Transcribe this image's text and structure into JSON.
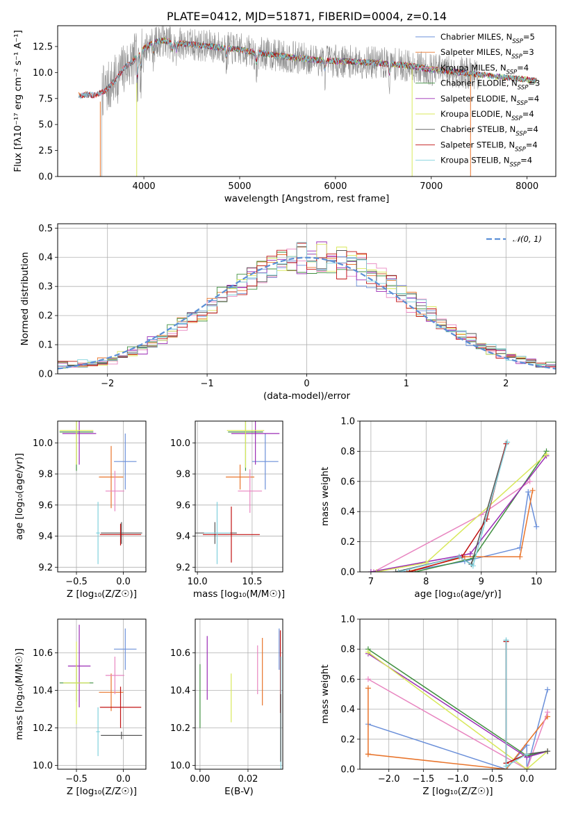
{
  "colors": {
    "chabrier_miles": "#6a8fd9",
    "salpeter_miles": "#e8742b",
    "kroupa_miles": "#e885c0",
    "chabrier_elodie": "#3f8f3f",
    "salpeter_elodie": "#9b2bb5",
    "kroupa_elodie": "#d8e85a",
    "chabrier_stelib": "#555555",
    "salpeter_stelib": "#c01010",
    "kroupa_stelib": "#7fd0dc",
    "gauss": "#5b8fd6"
  },
  "chart_data": [
    {
      "type": "line",
      "panel": "spectrum",
      "title": "PLATE=0412, MJD=51871, FIBERID=0004, z=0.14",
      "xlabel": "wavelength [Angstrom, rest frame]",
      "ylabel": "Flux [fλ10⁻¹⁷ erg cm⁻² s⁻¹ A⁻¹]",
      "xlim": [
        3100,
        8300
      ],
      "ylim": [
        0,
        14.5
      ],
      "xticks": [
        4000,
        5000,
        6000,
        7000,
        8000
      ],
      "yticks": [
        0.0,
        2.5,
        5.0,
        7.5,
        10.0,
        12.5
      ],
      "ytick_labels": [
        "0.0",
        "2.5",
        "5.0",
        "7.5",
        "10.0",
        "12.5"
      ],
      "legend_loc": "right",
      "legend": [
        {
          "main": "Chabrier MILES, N",
          "sub": "SSP",
          "tail": "=5",
          "color": "chabrier_miles"
        },
        {
          "main": "Salpeter MILES, N",
          "sub": "SSP",
          "tail": "=3",
          "color": "salpeter_miles"
        },
        {
          "main": "Kroupa MILES, N",
          "sub": "SSP",
          "tail": "=4",
          "color": "kroupa_miles"
        },
        {
          "main": "Chabrier ELODIE, N",
          "sub": "SSP",
          "tail": "=3",
          "color": "chabrier_elodie"
        },
        {
          "main": "Salpeter ELODIE, N",
          "sub": "SSP",
          "tail": "=4",
          "color": "salpeter_elodie"
        },
        {
          "main": "Kroupa ELODIE, N",
          "sub": "SSP",
          "tail": "=4",
          "color": "kroupa_elodie"
        },
        {
          "main": "Chabrier STELIB, N",
          "sub": "SSP",
          "tail": "=4",
          "color": "chabrier_stelib"
        },
        {
          "main": "Salpeter STELIB, N",
          "sub": "SSP",
          "tail": "=4",
          "color": "salpeter_stelib"
        },
        {
          "main": "Kroupa STELIB, N",
          "sub": "SSP",
          "tail": "=4",
          "color": "kroupa_stelib"
        }
      ],
      "continuum": [
        [
          3320,
          7.7
        ],
        [
          3400,
          7.9
        ],
        [
          3500,
          7.8
        ],
        [
          3600,
          8.3
        ],
        [
          3700,
          9.2
        ],
        [
          3800,
          10.5
        ],
        [
          3900,
          11.2
        ],
        [
          4000,
          12.3
        ],
        [
          4100,
          12.9
        ],
        [
          4200,
          13.1
        ],
        [
          4300,
          12.9
        ],
        [
          4500,
          12.7
        ],
        [
          4800,
          12.4
        ],
        [
          5000,
          12.2
        ],
        [
          5200,
          11.9
        ],
        [
          5500,
          11.5
        ],
        [
          5800,
          11.2
        ],
        [
          6000,
          11.1
        ],
        [
          6300,
          11.0
        ],
        [
          6600,
          10.8
        ],
        [
          6800,
          10.6
        ],
        [
          7000,
          10.3
        ],
        [
          7300,
          10.0
        ],
        [
          7600,
          9.7
        ],
        [
          7900,
          9.4
        ],
        [
          8100,
          9.2
        ]
      ],
      "observed_range": [
        3550,
        7500
      ]
    },
    {
      "type": "bar",
      "panel": "residuals",
      "xlabel": "(data-model)/error",
      "ylabel": "Normed distribution",
      "xlim": [
        -2.5,
        2.5
      ],
      "ylim": [
        0,
        0.515
      ],
      "xticks": [
        -2,
        -1,
        0,
        1,
        2
      ],
      "xtick_labels": [
        "−2",
        "−1",
        "0",
        "1",
        "2"
      ],
      "yticks": [
        0.0,
        0.1,
        0.2,
        0.3,
        0.4,
        0.5
      ],
      "ytick_labels": [
        "0.0",
        "0.1",
        "0.2",
        "0.3",
        "0.4",
        "0.5"
      ],
      "legend_label": "𝒩(0, 1)",
      "legend_loc": "top-right",
      "bin_width": 0.1
    },
    {
      "type": "scatter",
      "panel": "age-vs-Z",
      "xlabel": "Z [log₁₀(Z/Z☉)]",
      "ylabel": "age  [log₁₀(age/yr)]",
      "xlim": [
        -0.7,
        0.24
      ],
      "ylim": [
        9.17,
        10.14
      ],
      "xticks": [
        -0.5,
        0.0
      ],
      "xtick_labels": [
        "−0.5",
        "0.0"
      ],
      "yticks": [
        9.2,
        9.4,
        9.6,
        9.8,
        10.0
      ],
      "ytick_labels": [
        "9.2",
        "9.4",
        "9.6",
        "9.8",
        "10.0"
      ],
      "points": [
        {
          "x": 0.02,
          "y": 9.88,
          "xerr": 0.12,
          "yerr": 0.18,
          "color": "chabrier_miles"
        },
        {
          "x": -0.13,
          "y": 9.78,
          "xerr": 0.13,
          "yerr": 0.2,
          "color": "salpeter_miles"
        },
        {
          "x": -0.09,
          "y": 9.69,
          "xerr": 0.1,
          "yerr": 0.13,
          "color": "kroupa_miles"
        },
        {
          "x": -0.5,
          "y": 10.07,
          "xerr": 0.18,
          "yerr": 0.25,
          "color": "chabrier_elodie"
        },
        {
          "x": -0.47,
          "y": 10.06,
          "xerr": 0.18,
          "yerr": 0.2,
          "color": "salpeter_elodie"
        },
        {
          "x": -0.5,
          "y": 10.08,
          "xerr": 0.18,
          "yerr": 0.22,
          "color": "kroupa_elodie"
        },
        {
          "x": -0.02,
          "y": 9.42,
          "xerr": 0.22,
          "yerr": 0.07,
          "color": "chabrier_stelib"
        },
        {
          "x": -0.03,
          "y": 9.41,
          "xerr": 0.22,
          "yerr": 0.07,
          "color": "salpeter_stelib"
        },
        {
          "x": -0.27,
          "y": 9.42,
          "xerr": 0.02,
          "yerr": 0.2,
          "color": "kroupa_stelib"
        }
      ]
    },
    {
      "type": "scatter",
      "panel": "age-vs-mass",
      "xlabel": "mass [log₁₀(M/M☉)]",
      "ylabel": "",
      "xlim": [
        9.98,
        10.78
      ],
      "ylim": [
        9.17,
        10.14
      ],
      "xticks": [
        10.0,
        10.5
      ],
      "xtick_labels": [
        "10.0",
        "10.5"
      ],
      "yticks": [
        9.2,
        9.4,
        9.6,
        9.8,
        10.0
      ],
      "ytick_labels": [
        "9.2",
        "9.4",
        "9.6",
        "9.8",
        "10.0"
      ],
      "points": [
        {
          "x": 10.62,
          "y": 9.88,
          "xerr": 0.12,
          "yerr": 0.18,
          "color": "chabrier_miles"
        },
        {
          "x": 10.39,
          "y": 9.78,
          "xerr": 0.13,
          "yerr": 0.08,
          "color": "salpeter_miles"
        },
        {
          "x": 10.48,
          "y": 9.69,
          "xerr": 0.11,
          "yerr": 0.14,
          "color": "kroupa_miles"
        },
        {
          "x": 10.44,
          "y": 10.07,
          "xerr": 0.16,
          "yerr": 0.25,
          "color": "chabrier_elodie"
        },
        {
          "x": 10.53,
          "y": 10.06,
          "xerr": 0.22,
          "yerr": 0.2,
          "color": "salpeter_elodie"
        },
        {
          "x": 10.44,
          "y": 10.08,
          "xerr": 0.17,
          "yerr": 0.24,
          "color": "kroupa_elodie"
        },
        {
          "x": 10.16,
          "y": 9.42,
          "xerr": 0.2,
          "yerr": 0.07,
          "color": "chabrier_stelib"
        },
        {
          "x": 10.31,
          "y": 9.41,
          "xerr": 0.26,
          "yerr": 0.18,
          "color": "salpeter_stelib"
        },
        {
          "x": 10.18,
          "y": 9.42,
          "xerr": 0.12,
          "yerr": 0.2,
          "color": "kroupa_stelib"
        }
      ]
    },
    {
      "type": "line",
      "panel": "massweight-vs-age",
      "xlabel": "age  [log₁₀(age/yr)]",
      "ylabel": "mass weight",
      "xlim": [
        6.8,
        10.35
      ],
      "ylim": [
        0,
        1.0
      ],
      "xticks": [
        7,
        8,
        9,
        10
      ],
      "xtick_labels": [
        "7",
        "8",
        "9",
        "10"
      ],
      "yticks": [
        0.0,
        0.2,
        0.4,
        0.6,
        0.8,
        1.0
      ],
      "ytick_labels": [
        "0.0",
        "0.2",
        "0.4",
        "0.6",
        "0.8",
        "1.0"
      ],
      "series": [
        {
          "color": "chabrier_miles",
          "x": [
            7.6,
            8.7,
            9.7,
            9.85,
            10.0
          ],
          "y": [
            0.0,
            0.07,
            0.16,
            0.53,
            0.3
          ]
        },
        {
          "color": "salpeter_miles",
          "x": [
            7.65,
            8.7,
            9.7,
            9.93
          ],
          "y": [
            0.0,
            0.1,
            0.1,
            0.54
          ]
        },
        {
          "color": "kroupa_miles",
          "x": [
            7.05,
            9.0,
            9.88
          ],
          "y": [
            0.0,
            0.38,
            0.6
          ]
        },
        {
          "color": "chabrier_elodie",
          "x": [
            7.8,
            8.85,
            10.18
          ],
          "y": [
            0.0,
            0.09,
            0.8
          ]
        },
        {
          "color": "salpeter_elodie",
          "x": [
            7.0,
            8.8,
            10.18
          ],
          "y": [
            0.0,
            0.12,
            0.77
          ]
        },
        {
          "color": "kroupa_elodie",
          "x": [
            7.1,
            8.0,
            10.18
          ],
          "y": [
            0.0,
            0.06,
            0.78
          ]
        },
        {
          "color": "chabrier_stelib",
          "x": [
            7.45,
            8.6,
            8.82,
            9.45
          ],
          "y": [
            0.0,
            0.1,
            0.05,
            0.85
          ]
        },
        {
          "color": "salpeter_stelib",
          "x": [
            7.7,
            8.65,
            9.1,
            9.45
          ],
          "y": [
            0.0,
            0.1,
            0.35,
            0.85
          ]
        },
        {
          "color": "kroupa_stelib",
          "x": [
            7.5,
            8.6,
            8.85,
            9.47
          ],
          "y": [
            0.0,
            0.1,
            0.04,
            0.86
          ]
        }
      ]
    },
    {
      "type": "scatter",
      "panel": "mass-vs-Z",
      "xlabel": "Z [log₁₀(Z/Z☉)]",
      "ylabel": "mass [log₁₀(M/M☉)]",
      "xlim": [
        -0.7,
        0.24
      ],
      "ylim": [
        9.98,
        10.78
      ],
      "xticks": [
        -0.5,
        0.0
      ],
      "xtick_labels": [
        "−0.5",
        "0.0"
      ],
      "yticks": [
        10.0,
        10.2,
        10.4,
        10.6
      ],
      "ytick_labels": [
        "10.0",
        "10.2",
        "10.4",
        "10.6"
      ],
      "points": [
        {
          "x": 0.02,
          "y": 10.62,
          "xerr": 0.12,
          "yerr": 0.11,
          "color": "chabrier_miles"
        },
        {
          "x": -0.13,
          "y": 10.39,
          "xerr": 0.13,
          "yerr": 0.1,
          "color": "salpeter_miles"
        },
        {
          "x": -0.09,
          "y": 10.48,
          "xerr": 0.1,
          "yerr": 0.1,
          "color": "kroupa_miles"
        },
        {
          "x": -0.5,
          "y": 10.44,
          "xerr": 0.18,
          "yerr": 0.1,
          "color": "chabrier_elodie"
        },
        {
          "x": -0.47,
          "y": 10.53,
          "xerr": 0.12,
          "yerr": 0.22,
          "color": "salpeter_elodie"
        },
        {
          "x": -0.5,
          "y": 10.44,
          "xerr": 0.14,
          "yerr": 0.22,
          "color": "kroupa_elodie"
        },
        {
          "x": -0.02,
          "y": 10.16,
          "xerr": 0.22,
          "yerr": 0.02,
          "color": "chabrier_stelib"
        },
        {
          "x": -0.03,
          "y": 10.31,
          "xerr": 0.22,
          "yerr": 0.11,
          "color": "salpeter_stelib"
        },
        {
          "x": -0.27,
          "y": 10.18,
          "xerr": 0.02,
          "yerr": 0.13,
          "color": "kroupa_stelib"
        }
      ]
    },
    {
      "type": "scatter",
      "panel": "mass-vs-ebv",
      "xlabel": "E(B-V)",
      "ylabel": "",
      "xlim": [
        -0.002,
        0.0345
      ],
      "ylim": [
        9.98,
        10.78
      ],
      "xticks": [
        0.0,
        0.02
      ],
      "xtick_labels": [
        "0.00",
        "0.02"
      ],
      "yticks": [
        10.0,
        10.2,
        10.4,
        10.6
      ],
      "ytick_labels": [
        "10.0",
        "10.2",
        "10.4",
        "10.6"
      ],
      "points": [
        {
          "x": 0.0,
          "y": 10.37,
          "yerr": 0.17,
          "color": "chabrier_elodie"
        },
        {
          "x": 0.003,
          "y": 10.52,
          "yerr": 0.17,
          "color": "salpeter_elodie"
        },
        {
          "x": 0.013,
          "y": 10.36,
          "yerr": 0.13,
          "color": "kroupa_elodie"
        },
        {
          "x": 0.024,
          "y": 10.51,
          "yerr": 0.13,
          "color": "kroupa_miles"
        },
        {
          "x": 0.026,
          "y": 10.5,
          "yerr": 0.18,
          "color": "salpeter_miles"
        },
        {
          "x": 0.033,
          "y": 10.62,
          "yerr": 0.11,
          "color": "chabrier_miles"
        },
        {
          "x": 0.0335,
          "y": 10.5,
          "yerr": 0.22,
          "color": "salpeter_stelib"
        },
        {
          "x": 0.0337,
          "y": 10.28,
          "yerr": 0.3,
          "color": "kroupa_stelib"
        },
        {
          "x": 0.0336,
          "y": 10.2,
          "yerr": 0.18,
          "color": "chabrier_stelib"
        }
      ]
    },
    {
      "type": "line",
      "panel": "massweight-vs-Z",
      "xlabel": "Z [log₁₀(Z/Z☉)]",
      "ylabel": "mass weight",
      "xlim": [
        -2.42,
        0.42
      ],
      "ylim": [
        0,
        1.0
      ],
      "xticks": [
        -2.0,
        -1.5,
        -1.0,
        -0.5,
        0.0
      ],
      "xtick_labels": [
        "−2.0",
        "−1.5",
        "−1.0",
        "−0.5",
        "0.0"
      ],
      "yticks": [
        0.0,
        0.2,
        0.4,
        0.6,
        0.8,
        1.0
      ],
      "ytick_labels": [
        "0.0",
        "0.2",
        "0.4",
        "0.6",
        "0.8",
        "1.0"
      ],
      "series": [
        {
          "color": "chabrier_miles",
          "x": [
            -2.3,
            -0.3,
            0.0,
            0.0,
            0.3
          ],
          "y": [
            0.3,
            0.0,
            0.16,
            0.0,
            0.53
          ]
        },
        {
          "color": "salpeter_miles",
          "x": [
            -2.3,
            -2.3,
            -2.3,
            -0.3,
            0.3
          ],
          "y": [
            0.54,
            0.1,
            0.1,
            0.0,
            0.35
          ]
        },
        {
          "color": "kroupa_miles",
          "x": [
            -2.3,
            0.0,
            0.3
          ],
          "y": [
            0.6,
            0.0,
            0.38
          ]
        },
        {
          "color": "chabrier_elodie",
          "x": [
            -2.3,
            0.0,
            0.3
          ],
          "y": [
            0.8,
            0.09,
            0.12
          ]
        },
        {
          "color": "salpeter_elodie",
          "x": [
            -2.3,
            0.0,
            0.3
          ],
          "y": [
            0.77,
            0.08,
            0.12
          ]
        },
        {
          "color": "kroupa_elodie",
          "x": [
            -2.3,
            0.0,
            0.3
          ],
          "y": [
            0.78,
            0.0,
            0.12
          ]
        },
        {
          "color": "chabrier_stelib",
          "x": [
            -0.3,
            -0.3,
            0.0,
            0.3
          ],
          "y": [
            0.85,
            0.04,
            0.1,
            0.12
          ]
        },
        {
          "color": "salpeter_stelib",
          "x": [
            -0.3,
            -0.3,
            0.0
          ],
          "y": [
            0.85,
            0.04,
            0.1
          ]
        },
        {
          "color": "kroupa_stelib",
          "x": [
            -0.3,
            -0.3,
            0.0
          ],
          "y": [
            0.86,
            0.02,
            0.1
          ]
        }
      ]
    }
  ]
}
